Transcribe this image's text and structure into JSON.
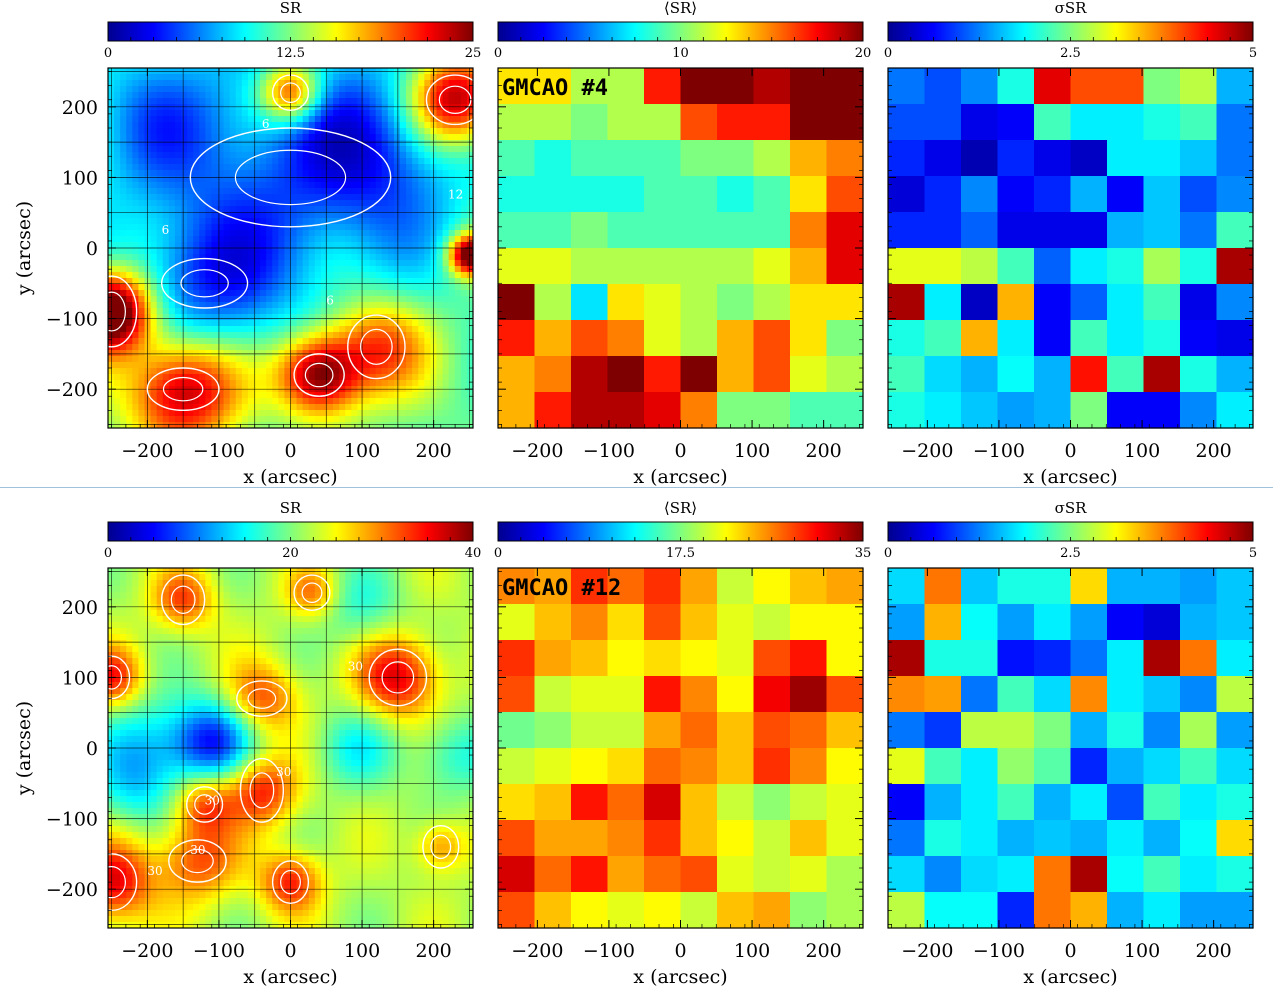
{
  "colormap": [
    "#00008f",
    "#0000ff",
    "#007fff",
    "#00ffff",
    "#7fff7f",
    "#ffff00",
    "#ff7f00",
    "#ff0000",
    "#7f0000"
  ],
  "axis_label_x": "x (arcsec)",
  "axis_label_y": "y (arcsec)",
  "chart_data": [
    {
      "type": "heatmap",
      "panel": "top-left",
      "colorbar_title": "SR",
      "colorbar_ticks": [
        "0",
        "12.5",
        "25"
      ],
      "vmin": 0,
      "vmax": 25,
      "contour_labels": [
        "6",
        "6",
        "12",
        "6"
      ],
      "xlabel": "x (arcsec)",
      "ylabel": "y (arcsec)",
      "xticks": [
        "−200",
        "−100",
        "0",
        "100",
        "200"
      ],
      "yticks": [
        "200",
        "100",
        "0",
        "−100",
        "−200"
      ],
      "xlim": [
        -255,
        255
      ],
      "ylim": [
        -255,
        255
      ]
    },
    {
      "type": "heatmap",
      "panel": "top-middle",
      "colorbar_title": "⟨SR⟩",
      "colorbar_ticks": [
        "0",
        "10",
        "20"
      ],
      "vmin": 0,
      "vmax": 20,
      "label": "GMCAO  #4",
      "xlabel": "x (arcsec)",
      "xticks": [
        "−200",
        "−100",
        "0",
        "100",
        "200"
      ],
      "xlim": [
        -255,
        255
      ],
      "ylim": [
        -255,
        255
      ],
      "grid": [
        [
          13,
          13,
          11,
          11,
          17,
          20,
          20,
          19,
          22,
          25
        ],
        [
          11,
          11,
          10,
          11,
          11,
          16,
          17,
          17,
          20,
          21
        ],
        [
          9,
          8,
          9,
          9,
          9,
          10,
          10,
          11,
          14,
          15
        ],
        [
          8,
          8,
          8,
          8,
          9,
          9,
          8,
          9,
          13,
          16
        ],
        [
          9,
          9,
          10,
          9,
          9,
          9,
          9,
          9,
          15,
          18
        ],
        [
          12,
          12,
          11,
          11,
          11,
          11,
          11,
          12,
          14,
          18
        ],
        [
          20,
          11,
          7,
          13,
          12,
          11,
          10,
          11,
          13,
          13
        ],
        [
          17,
          14,
          16,
          15,
          12,
          11,
          14,
          16,
          13,
          10
        ],
        [
          14,
          15,
          19,
          20,
          17,
          24,
          14,
          16,
          12,
          11
        ],
        [
          14,
          17,
          19,
          19,
          18,
          15,
          10,
          10,
          9,
          9
        ]
      ]
    },
    {
      "type": "heatmap",
      "panel": "top-right",
      "colorbar_title": "σSR",
      "colorbar_ticks": [
        "0",
        "2.5",
        "5"
      ],
      "vmin": 0,
      "vmax": 5,
      "xlabel": "x (arcsec)",
      "xticks": [
        "−200",
        "−100",
        "0",
        "100",
        "200"
      ],
      "xlim": [
        -255,
        255
      ],
      "ylim": [
        -255,
        255
      ],
      "grid": [
        [
          1.2,
          1.0,
          1.3,
          2.0,
          4.5,
          4.0,
          4.0,
          2.5,
          2.8,
          1.5
        ],
        [
          1.0,
          1.0,
          0.5,
          0.6,
          2.2,
          1.8,
          1.8,
          2.0,
          2.2,
          1.2
        ],
        [
          0.8,
          0.5,
          0.2,
          0.8,
          0.5,
          0.3,
          1.8,
          1.8,
          1.6,
          1.2
        ],
        [
          0.4,
          0.8,
          1.3,
          0.6,
          0.8,
          1.5,
          0.6,
          1.6,
          1.0,
          1.3
        ],
        [
          0.8,
          0.8,
          1.1,
          0.5,
          0.5,
          0.5,
          1.5,
          1.6,
          1.2,
          2.2
        ],
        [
          3.0,
          3.0,
          2.8,
          2.2,
          1.1,
          1.8,
          2.0,
          2.7,
          2.0,
          4.8
        ],
        [
          4.8,
          1.8,
          0.3,
          3.5,
          0.6,
          1.1,
          1.8,
          2.2,
          0.5,
          1.3
        ],
        [
          2.0,
          2.2,
          3.5,
          1.8,
          0.6,
          2.2,
          1.8,
          2.0,
          0.6,
          0.5
        ],
        [
          2.2,
          1.7,
          1.5,
          1.9,
          1.5,
          4.3,
          2.2,
          4.8,
          2.0,
          1.5
        ],
        [
          2.0,
          1.8,
          1.6,
          1.4,
          1.5,
          2.5,
          0.6,
          0.6,
          1.3,
          1.8
        ]
      ]
    },
    {
      "type": "heatmap",
      "panel": "bottom-left",
      "colorbar_title": "SR",
      "colorbar_ticks": [
        "0",
        "20",
        "40"
      ],
      "vmin": 0,
      "vmax": 40,
      "contour_labels": [
        "30",
        "30",
        "30",
        "30",
        "30"
      ],
      "xlabel": "x (arcsec)",
      "ylabel": "y (arcsec)",
      "xticks": [
        "−200",
        "−100",
        "0",
        "100",
        "200"
      ],
      "yticks": [
        "200",
        "100",
        "0",
        "−100",
        "−200"
      ],
      "xlim": [
        -255,
        255
      ],
      "ylim": [
        -255,
        255
      ]
    },
    {
      "type": "heatmap",
      "panel": "bottom-middle",
      "colorbar_title": "⟨SR⟩",
      "colorbar_ticks": [
        "0",
        "17.5",
        "35"
      ],
      "vmin": 0,
      "vmax": 35,
      "label": "GMCAO  #12",
      "xlabel": "x (arcsec)",
      "xticks": [
        "−200",
        "−100",
        "0",
        "100",
        "200"
      ],
      "xlim": [
        -255,
        255
      ],
      "ylim": [
        -255,
        255
      ],
      "grid": [
        [
          26,
          25,
          29,
          27,
          29,
          25,
          20,
          22,
          24,
          25
        ],
        [
          21,
          24,
          26,
          23,
          28,
          24,
          21,
          20,
          22,
          22
        ],
        [
          29,
          25,
          24,
          22,
          23,
          22,
          21,
          28,
          30,
          22
        ],
        [
          28,
          20,
          21,
          21,
          30,
          26,
          22,
          31,
          34,
          28
        ],
        [
          17,
          18,
          20,
          20,
          25,
          27,
          24,
          28,
          27,
          24
        ],
        [
          20,
          21,
          22,
          23,
          27,
          26,
          24,
          29,
          26,
          22
        ],
        [
          23,
          24,
          30,
          27,
          32,
          24,
          20,
          18,
          20,
          21
        ],
        [
          28,
          25,
          25,
          26,
          29,
          24,
          22,
          20,
          24,
          21
        ],
        [
          32,
          27,
          30,
          25,
          27,
          28,
          21,
          20,
          21,
          19
        ],
        [
          28,
          24,
          22,
          21,
          22,
          20,
          24,
          25,
          18,
          19
        ]
      ]
    },
    {
      "type": "heatmap",
      "panel": "bottom-right",
      "colorbar_title": "σSR",
      "colorbar_ticks": [
        "0",
        "2.5",
        "5"
      ],
      "vmin": 0,
      "vmax": 5,
      "xlabel": "x (arcsec)",
      "xticks": [
        "−200",
        "−100",
        "0",
        "100",
        "200"
      ],
      "xlim": [
        -255,
        255
      ],
      "ylim": [
        -255,
        255
      ],
      "grid": [
        [
          1.7,
          3.8,
          1.6,
          2.0,
          2.0,
          3.3,
          1.5,
          1.5,
          1.4,
          1.6
        ],
        [
          1.4,
          3.5,
          1.9,
          1.4,
          1.8,
          1.4,
          0.6,
          0.4,
          1.5,
          1.6
        ],
        [
          4.8,
          2.0,
          2.0,
          0.7,
          0.8,
          1.2,
          1.8,
          4.8,
          3.8,
          1.8
        ],
        [
          3.7,
          3.6,
          1.2,
          2.2,
          1.7,
          3.7,
          1.8,
          1.6,
          1.3,
          2.8
        ],
        [
          1.2,
          0.9,
          2.8,
          2.8,
          2.5,
          1.5,
          2.0,
          1.3,
          2.7,
          1.4
        ],
        [
          3.0,
          2.2,
          1.8,
          2.6,
          2.3,
          0.8,
          1.5,
          1.7,
          2.2,
          1.7
        ],
        [
          0.6,
          1.5,
          1.8,
          2.2,
          1.5,
          1.8,
          1.0,
          2.2,
          1.8,
          2.0
        ],
        [
          1.2,
          2.0,
          1.8,
          1.5,
          1.6,
          1.5,
          1.8,
          1.5,
          1.9,
          3.3
        ],
        [
          1.7,
          1.3,
          1.7,
          1.8,
          3.8,
          4.8,
          1.9,
          2.2,
          1.8,
          2.0
        ],
        [
          2.8,
          1.9,
          1.9,
          0.8,
          3.8,
          3.5,
          1.5,
          1.8,
          1.4,
          1.4
        ]
      ]
    }
  ]
}
